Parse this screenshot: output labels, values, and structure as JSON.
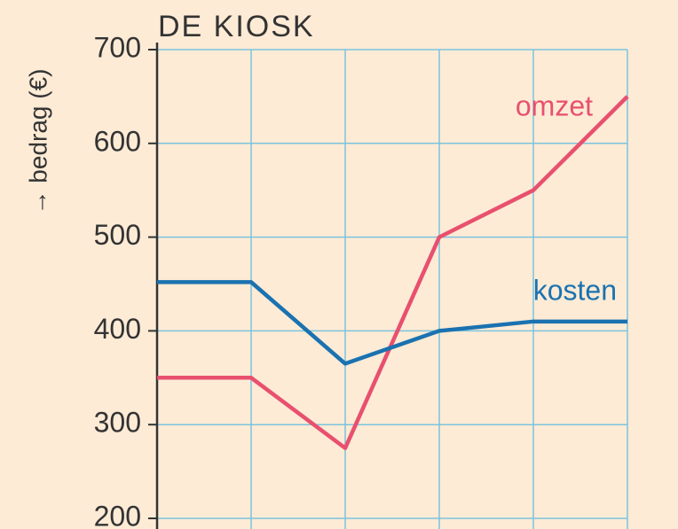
{
  "chart_data": {
    "type": "line",
    "title": "DE KIOSK",
    "y_label": "→ bedrag (€)",
    "categories": [
      null,
      null,
      null,
      null,
      null,
      null
    ],
    "series": [
      {
        "name": "omzet",
        "color": "#e8506e",
        "values": [
          350,
          350,
          275,
          500,
          550,
          650
        ]
      },
      {
        "name": "kosten",
        "color": "#1a72b0",
        "values": [
          452,
          452,
          365,
          400,
          410,
          410
        ]
      }
    ],
    "ylim": [
      200,
      700
    ],
    "yticks": [
      200,
      300,
      400,
      500,
      600,
      700
    ],
    "grid": true
  }
}
